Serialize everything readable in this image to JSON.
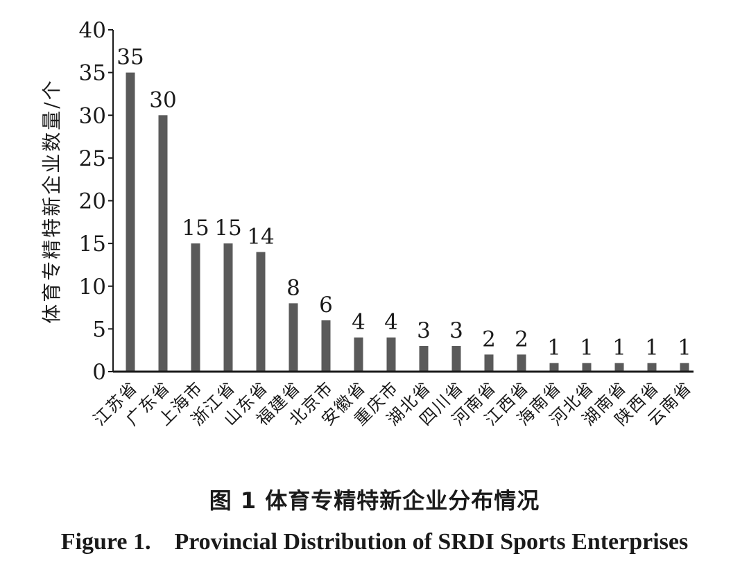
{
  "chart_data": {
    "type": "bar",
    "categories": [
      "江苏省",
      "广东省",
      "上海市",
      "浙江省",
      "山东省",
      "福建省",
      "北京市",
      "安徽省",
      "重庆市",
      "湖北省",
      "四川省",
      "河南省",
      "江西省",
      "海南省",
      "河北省",
      "湖南省",
      "陕西省",
      "云南省"
    ],
    "values": [
      35,
      30,
      15,
      15,
      14,
      8,
      6,
      4,
      4,
      3,
      3,
      2,
      2,
      1,
      1,
      1,
      1,
      1
    ],
    "ylabel": "体育专精特新企业数量/个",
    "ylim": [
      0,
      40
    ],
    "yticks": [
      "0",
      "5",
      "10",
      "15",
      "20",
      "25",
      "30",
      "35",
      "40"
    ],
    "grid": false,
    "bar_color": "#5a5a5a"
  },
  "caption": {
    "cn": "图 1   体育专精特新企业分布情况",
    "en": "Figure 1.    Provincial Distribution of SRDI Sports Enterprises"
  }
}
